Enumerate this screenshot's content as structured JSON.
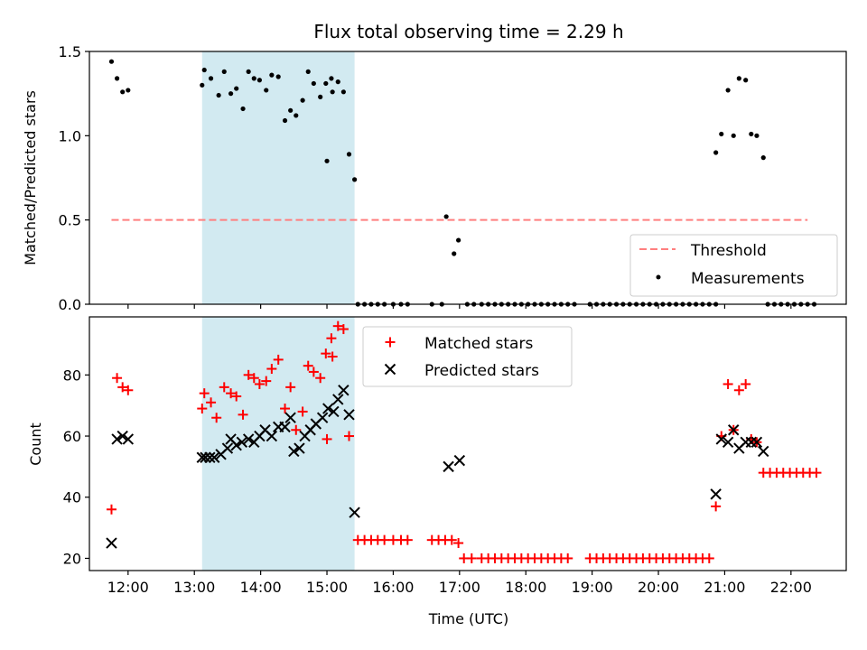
{
  "chart_data": [
    {
      "id": "ratio",
      "type": "scatter",
      "title": "Flux total observing time = 2.29 h",
      "ylabel": "Matched/Predicted stars",
      "xlabel": "",
      "xlim": [
        "11:25",
        "22:50"
      ],
      "ylim": [
        0,
        1.5
      ],
      "yticks": [
        0.0,
        0.5,
        1.0,
        1.5
      ],
      "ytick_labels": [
        "0.0",
        "0.5",
        "1.0",
        "1.5"
      ],
      "xticks_shown": false,
      "shaded_interval": [
        "13:07",
        "15:25"
      ],
      "shade_color": "#add8e6",
      "legend_position": "lower-right",
      "threshold": {
        "name": "Threshold",
        "value": 0.5,
        "x": [
          "11:45",
          "22:15"
        ],
        "color": "#ff7f7f",
        "style": "dashed"
      },
      "series": [
        {
          "name": "Measurements",
          "color": "#000000",
          "marker": "dot",
          "points": [
            [
              "11:45",
              1.44
            ],
            [
              "11:50",
              1.34
            ],
            [
              "11:55",
              1.26
            ],
            [
              "12:00",
              1.27
            ],
            [
              "13:07",
              1.3
            ],
            [
              "13:09",
              1.39
            ],
            [
              "13:15",
              1.34
            ],
            [
              "13:22",
              1.24
            ],
            [
              "13:27",
              1.38
            ],
            [
              "13:33",
              1.25
            ],
            [
              "13:38",
              1.28
            ],
            [
              "13:44",
              1.16
            ],
            [
              "13:49",
              1.38
            ],
            [
              "13:54",
              1.34
            ],
            [
              "13:59",
              1.33
            ],
            [
              "14:05",
              1.27
            ],
            [
              "14:10",
              1.36
            ],
            [
              "14:16",
              1.35
            ],
            [
              "14:22",
              1.09
            ],
            [
              "14:27",
              1.15
            ],
            [
              "14:32",
              1.12
            ],
            [
              "14:38",
              1.21
            ],
            [
              "14:43",
              1.38
            ],
            [
              "14:48",
              1.31
            ],
            [
              "14:54",
              1.23
            ],
            [
              "14:59",
              1.31
            ],
            [
              "15:04",
              1.34
            ],
            [
              "15:00",
              0.85
            ],
            [
              "15:05",
              1.26
            ],
            [
              "15:10",
              1.32
            ],
            [
              "15:15",
              1.26
            ],
            [
              "15:20",
              0.89
            ],
            [
              "15:25",
              0.74
            ],
            [
              "15:28",
              0.0
            ],
            [
              "15:34",
              0.0
            ],
            [
              "15:40",
              0.0
            ],
            [
              "15:46",
              0.0
            ],
            [
              "15:52",
              0.0
            ],
            [
              "16:00",
              0.0
            ],
            [
              "16:07",
              0.0
            ],
            [
              "16:13",
              0.0
            ],
            [
              "16:35",
              0.0
            ],
            [
              "16:44",
              0.0
            ],
            [
              "16:48",
              0.52
            ],
            [
              "16:55",
              0.3
            ],
            [
              "16:59",
              0.38
            ],
            [
              "17:07",
              0.0
            ],
            [
              "17:13",
              0.0
            ],
            [
              "17:20",
              0.0
            ],
            [
              "17:26",
              0.0
            ],
            [
              "17:32",
              0.0
            ],
            [
              "17:38",
              0.0
            ],
            [
              "17:44",
              0.0
            ],
            [
              "17:50",
              0.0
            ],
            [
              "17:56",
              0.0
            ],
            [
              "18:02",
              0.0
            ],
            [
              "18:08",
              0.0
            ],
            [
              "18:14",
              0.0
            ],
            [
              "18:20",
              0.0
            ],
            [
              "18:26",
              0.0
            ],
            [
              "18:32",
              0.0
            ],
            [
              "18:38",
              0.0
            ],
            [
              "18:44",
              0.0
            ],
            [
              "18:58",
              0.0
            ],
            [
              "19:04",
              0.0
            ],
            [
              "19:10",
              0.0
            ],
            [
              "19:16",
              0.0
            ],
            [
              "19:22",
              0.0
            ],
            [
              "19:28",
              0.0
            ],
            [
              "19:34",
              0.0
            ],
            [
              "19:40",
              0.0
            ],
            [
              "19:46",
              0.0
            ],
            [
              "19:52",
              0.0
            ],
            [
              "19:58",
              0.0
            ],
            [
              "20:04",
              0.0
            ],
            [
              "20:10",
              0.0
            ],
            [
              "20:16",
              0.0
            ],
            [
              "20:22",
              0.0
            ],
            [
              "20:28",
              0.0
            ],
            [
              "20:34",
              0.0
            ],
            [
              "20:40",
              0.0
            ],
            [
              "20:46",
              0.0
            ],
            [
              "20:52",
              0.0
            ],
            [
              "20:52",
              0.9
            ],
            [
              "20:57",
              1.01
            ],
            [
              "21:03",
              1.27
            ],
            [
              "21:08",
              1.0
            ],
            [
              "21:13",
              1.34
            ],
            [
              "21:19",
              1.33
            ],
            [
              "21:24",
              1.01
            ],
            [
              "21:29",
              1.0
            ],
            [
              "21:35",
              0.87
            ],
            [
              "21:39",
              0.0
            ],
            [
              "21:45",
              0.0
            ],
            [
              "21:51",
              0.0
            ],
            [
              "21:57",
              0.0
            ],
            [
              "22:03",
              0.0
            ],
            [
              "22:09",
              0.0
            ],
            [
              "22:15",
              0.0
            ],
            [
              "22:21",
              0.0
            ]
          ]
        }
      ]
    },
    {
      "id": "counts",
      "type": "scatter",
      "title": "",
      "ylabel": "Count",
      "xlabel": "Time (UTC)",
      "xlim": [
        "11:25",
        "22:50"
      ],
      "ylim": [
        16,
        99
      ],
      "yticks": [
        20,
        40,
        60,
        80
      ],
      "ytick_labels": [
        "20",
        "40",
        "60",
        "80"
      ],
      "xticks": [
        "12:00",
        "13:00",
        "14:00",
        "15:00",
        "16:00",
        "17:00",
        "18:00",
        "19:00",
        "20:00",
        "21:00",
        "22:00"
      ],
      "xtick_labels": [
        "12:00",
        "13:00",
        "14:00",
        "15:00",
        "16:00",
        "17:00",
        "18:00",
        "19:00",
        "20:00",
        "21:00",
        "22:00"
      ],
      "shaded_interval": [
        "13:07",
        "15:25"
      ],
      "shade_color": "#add8e6",
      "legend_position": "upper-center",
      "series": [
        {
          "name": "Matched stars",
          "color": "#ff0000",
          "marker": "plus",
          "points": [
            [
              "11:45",
              36
            ],
            [
              "11:50",
              79
            ],
            [
              "11:55",
              76
            ],
            [
              "12:00",
              75
            ],
            [
              "13:07",
              69
            ],
            [
              "13:09",
              74
            ],
            [
              "13:15",
              71
            ],
            [
              "13:20",
              66
            ],
            [
              "13:27",
              76
            ],
            [
              "13:33",
              74
            ],
            [
              "13:38",
              73
            ],
            [
              "13:44",
              67
            ],
            [
              "13:49",
              80
            ],
            [
              "13:54",
              79
            ],
            [
              "13:59",
              77
            ],
            [
              "14:05",
              78
            ],
            [
              "14:10",
              82
            ],
            [
              "14:16",
              85
            ],
            [
              "14:22",
              69
            ],
            [
              "14:27",
              76
            ],
            [
              "14:32",
              62
            ],
            [
              "14:38",
              68
            ],
            [
              "14:43",
              83
            ],
            [
              "14:48",
              81
            ],
            [
              "14:54",
              79
            ],
            [
              "14:59",
              87
            ],
            [
              "15:04",
              92
            ],
            [
              "15:00",
              59
            ],
            [
              "15:05",
              86
            ],
            [
              "15:10",
              96
            ],
            [
              "15:15",
              95
            ],
            [
              "15:20",
              60
            ],
            [
              "15:28",
              26
            ],
            [
              "15:34",
              26
            ],
            [
              "15:40",
              26
            ],
            [
              "15:46",
              26
            ],
            [
              "15:52",
              26
            ],
            [
              "16:00",
              26
            ],
            [
              "16:07",
              26
            ],
            [
              "16:13",
              26
            ],
            [
              "16:35",
              26
            ],
            [
              "16:41",
              26
            ],
            [
              "16:47",
              26
            ],
            [
              "16:53",
              26
            ],
            [
              "16:59",
              25
            ],
            [
              "17:04",
              20
            ],
            [
              "17:11",
              20
            ],
            [
              "17:20",
              20
            ],
            [
              "17:26",
              20
            ],
            [
              "17:32",
              20
            ],
            [
              "17:38",
              20
            ],
            [
              "17:44",
              20
            ],
            [
              "17:50",
              20
            ],
            [
              "17:56",
              20
            ],
            [
              "18:02",
              20
            ],
            [
              "18:08",
              20
            ],
            [
              "18:14",
              20
            ],
            [
              "18:20",
              20
            ],
            [
              "18:26",
              20
            ],
            [
              "18:32",
              20
            ],
            [
              "18:38",
              20
            ],
            [
              "18:58",
              20
            ],
            [
              "19:04",
              20
            ],
            [
              "19:10",
              20
            ],
            [
              "19:16",
              20
            ],
            [
              "19:22",
              20
            ],
            [
              "19:28",
              20
            ],
            [
              "19:34",
              20
            ],
            [
              "19:40",
              20
            ],
            [
              "19:46",
              20
            ],
            [
              "19:52",
              20
            ],
            [
              "19:58",
              20
            ],
            [
              "20:04",
              20
            ],
            [
              "20:10",
              20
            ],
            [
              "20:16",
              20
            ],
            [
              "20:22",
              20
            ],
            [
              "20:28",
              20
            ],
            [
              "20:34",
              20
            ],
            [
              "20:40",
              20
            ],
            [
              "20:46",
              20
            ],
            [
              "20:52",
              37
            ],
            [
              "20:57",
              60
            ],
            [
              "21:03",
              77
            ],
            [
              "21:08",
              62
            ],
            [
              "21:13",
              75
            ],
            [
              "21:19",
              77
            ],
            [
              "21:24",
              59
            ],
            [
              "21:29",
              58
            ],
            [
              "21:35",
              48
            ],
            [
              "21:41",
              48
            ],
            [
              "21:47",
              48
            ],
            [
              "21:53",
              48
            ],
            [
              "21:59",
              48
            ],
            [
              "22:05",
              48
            ],
            [
              "22:11",
              48
            ],
            [
              "22:17",
              48
            ],
            [
              "22:23",
              48
            ]
          ]
        },
        {
          "name": "Predicted stars",
          "color": "#000000",
          "marker": "x",
          "points": [
            [
              "11:45",
              25
            ],
            [
              "11:50",
              59
            ],
            [
              "11:55",
              60
            ],
            [
              "12:00",
              59
            ],
            [
              "13:07",
              53
            ],
            [
              "13:10",
              53
            ],
            [
              "13:14",
              53
            ],
            [
              "13:18",
              53
            ],
            [
              "13:24",
              54
            ],
            [
              "13:30",
              56
            ],
            [
              "13:33",
              59
            ],
            [
              "13:38",
              57
            ],
            [
              "13:43",
              58
            ],
            [
              "13:49",
              59
            ],
            [
              "13:54",
              58
            ],
            [
              "13:59",
              60
            ],
            [
              "14:04",
              62
            ],
            [
              "14:10",
              60
            ],
            [
              "14:16",
              63
            ],
            [
              "14:22",
              63
            ],
            [
              "14:27",
              66
            ],
            [
              "14:30",
              55
            ],
            [
              "14:35",
              56
            ],
            [
              "14:40",
              60
            ],
            [
              "14:45",
              62
            ],
            [
              "14:50",
              64
            ],
            [
              "14:56",
              66
            ],
            [
              "15:01",
              69
            ],
            [
              "15:06",
              68
            ],
            [
              "15:10",
              72
            ],
            [
              "15:15",
              75
            ],
            [
              "15:20",
              67
            ],
            [
              "15:25",
              35
            ],
            [
              "16:50",
              50
            ],
            [
              "17:00",
              52
            ],
            [
              "20:52",
              41
            ],
            [
              "20:57",
              59
            ],
            [
              "21:03",
              58
            ],
            [
              "21:08",
              62
            ],
            [
              "21:13",
              56
            ],
            [
              "21:19",
              58
            ],
            [
              "21:24",
              58
            ],
            [
              "21:29",
              58
            ],
            [
              "21:35",
              55
            ]
          ]
        }
      ]
    }
  ]
}
